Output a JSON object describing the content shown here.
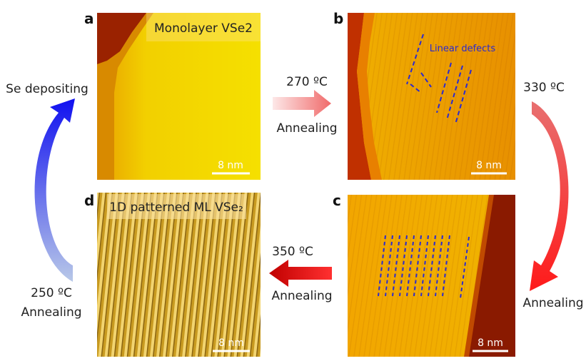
{
  "panels": [
    {
      "label": "a",
      "caption": "Monolayer VSe2",
      "scale_bar": "8 nm"
    },
    {
      "label": "b",
      "caption": "Linear defects",
      "scale_bar": "8 nm"
    },
    {
      "label": "c",
      "scale_bar": "8 nm"
    },
    {
      "label": "d",
      "caption": "1D patterned ML VSe₂",
      "scale_bar": "8 nm"
    }
  ],
  "arrows": [
    {
      "temperature": "270 ºC",
      "process": "Annealing"
    },
    {
      "temperature": "330 ºC",
      "process": "Annealing"
    },
    {
      "temperature": "350 ºC",
      "process": "Annealing"
    },
    {
      "temperature": "250 ºC",
      "process": "Annealing"
    },
    {
      "process": "Se depositing"
    }
  ]
}
